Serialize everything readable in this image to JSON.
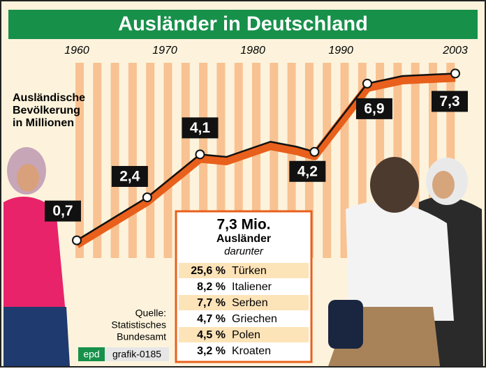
{
  "chart_data": {
    "type": "line",
    "title": "Ausländer in Deutschland",
    "y_label_lines": [
      "Ausländische",
      "Bevölkerung",
      "in Millionen"
    ],
    "x": [
      1960,
      1968,
      1974,
      1977,
      1982,
      1985,
      1987,
      1993,
      1997,
      2003
    ],
    "values": [
      0.7,
      2.4,
      4.1,
      4.0,
      4.6,
      4.4,
      4.2,
      6.9,
      7.2,
      7.3
    ],
    "value_labels": [
      "0,7",
      "2,4",
      "4,1",
      null,
      null,
      null,
      "4,2",
      "6,9",
      null,
      "7,3"
    ],
    "color": "#e8601c",
    "xlim": [
      1960,
      2003
    ],
    "xticks": [
      1960,
      1970,
      1980,
      1990,
      2003
    ],
    "ylim": [
      0,
      8
    ],
    "inset": {
      "headline": "7,3 Mio.",
      "subhead": "Ausländer",
      "note": "darunter",
      "rows": [
        [
          "25,6 %",
          "Türken"
        ],
        [
          "8,2 %",
          "Italiener"
        ],
        [
          "7,7 %",
          "Serben"
        ],
        [
          "4,7 %",
          "Griechen"
        ],
        [
          "4,5 %",
          "Polen"
        ],
        [
          "3,2 %",
          "Kroaten"
        ]
      ]
    },
    "source_lines": [
      "Quelle:",
      "Statistisches",
      "Bundesamt"
    ],
    "agency": "epd",
    "graphic_id": "grafik-0185"
  }
}
